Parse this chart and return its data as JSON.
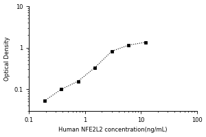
{
  "x": [
    0.188,
    0.375,
    0.75,
    1.5,
    3.0,
    6.0,
    12.0
  ],
  "y": [
    0.052,
    0.099,
    0.155,
    0.33,
    0.82,
    1.15,
    1.35
  ],
  "xlabel": "Human NFE2L2 concentration(ng/mL)",
  "ylabel": "Optical Density",
  "xlim": [
    0.1,
    100
  ],
  "ylim": [
    0.03,
    10
  ],
  "line_color": "black",
  "marker": "s",
  "marker_size": 3.5,
  "marker_facecolor": "black",
  "linestyle": "dotted",
  "background_color": "#ffffff",
  "xlabel_fontsize": 6,
  "ylabel_fontsize": 6,
  "tick_labelsize": 6,
  "figsize": [
    3.0,
    2.0
  ],
  "dpi": 100
}
